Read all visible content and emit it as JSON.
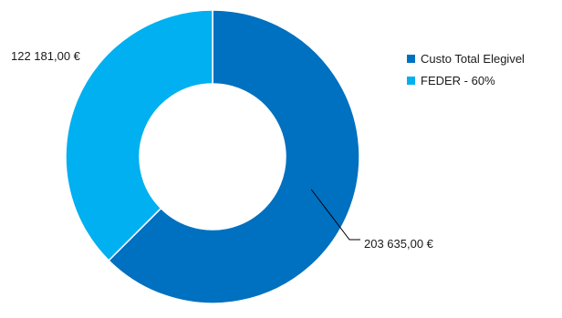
{
  "chart_data": {
    "type": "pie",
    "variant": "donut",
    "title": "",
    "categories": [
      "Custo Total Elegivel",
      "FEDER - 60%"
    ],
    "values": [
      203635.0,
      122181.0
    ],
    "data_labels": [
      "203 635,00 €",
      "122 181,00 €"
    ],
    "colors": [
      "#0070c0",
      "#00b0f0"
    ],
    "legend": {
      "placement": "right",
      "entries": [
        "Custo Total Elegivel",
        "FEDER - 60%"
      ]
    }
  }
}
